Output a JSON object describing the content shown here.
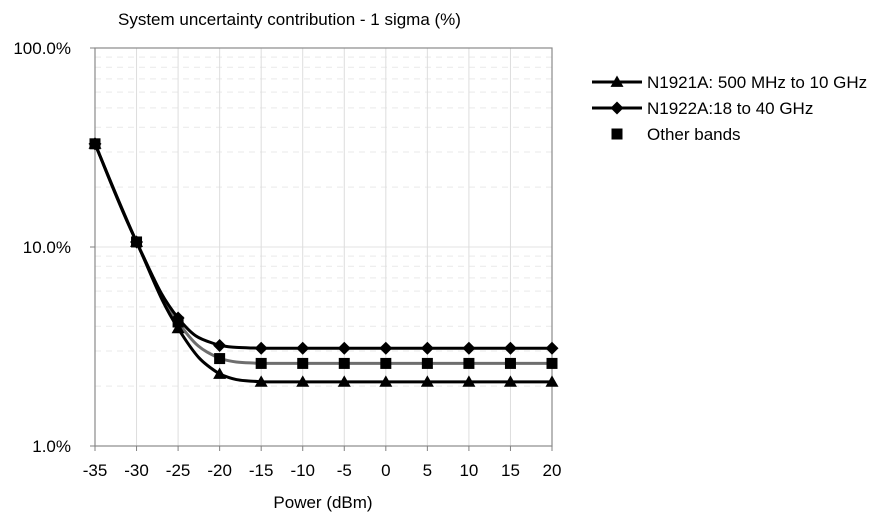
{
  "chart_data": {
    "type": "line",
    "title": "System uncertainty contribution - 1 sigma (%)",
    "xlabel": "Power (dBm)",
    "ylabel": "",
    "y_scale": "log",
    "xlim": [
      -35,
      20
    ],
    "ylim": [
      1,
      100
    ],
    "x_ticks": [
      "-35",
      "-30",
      "-25",
      "-20",
      "-15",
      "-10",
      "-5",
      "0",
      "5",
      "10",
      "15",
      "20"
    ],
    "y_ticks": [
      {
        "value": 1,
        "label": "1.0%"
      },
      {
        "value": 10,
        "label": "10.0%"
      },
      {
        "value": 100,
        "label": "100.0%"
      }
    ],
    "grid": true,
    "legend_position": "right",
    "x": [
      -35,
      -30,
      -25,
      -20,
      -15,
      -10,
      -5,
      0,
      5,
      10,
      15,
      20
    ],
    "series": [
      {
        "name": "N1921A: 500 MHz to 10 GHz",
        "marker": "triangle",
        "line": true,
        "color": "#000000",
        "values": [
          33,
          10.6,
          3.9,
          2.3,
          2.1,
          2.1,
          2.1,
          2.1,
          2.1,
          2.1,
          2.1,
          2.1
        ]
      },
      {
        "name": "N1922A:18 to 40 GHz",
        "marker": "diamond",
        "line": true,
        "color": "#000000",
        "values": [
          33,
          10.6,
          4.4,
          3.2,
          3.1,
          3.1,
          3.1,
          3.1,
          3.1,
          3.1,
          3.1,
          3.1
        ]
      },
      {
        "name": "Other bands",
        "marker": "square",
        "line": false,
        "color": "#000000",
        "connector_color": "#6e6e6e",
        "values": [
          33,
          10.6,
          4.2,
          2.75,
          2.6,
          2.6,
          2.6,
          2.6,
          2.6,
          2.6,
          2.6,
          2.6
        ]
      }
    ]
  }
}
